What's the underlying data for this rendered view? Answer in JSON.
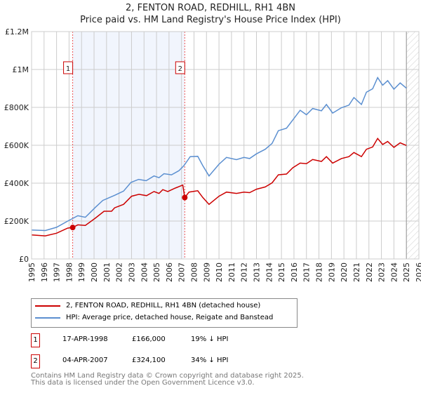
{
  "chart_data": {
    "type": "line",
    "title": "2, FENTON ROAD, REDHILL, RH1 4BN",
    "subtitle": "Price paid vs. HM Land Registry's House Price Index (HPI)",
    "xlim": [
      1995,
      2026
    ],
    "ylim": [
      0,
      1200000
    ],
    "x_ticks": [
      "1995",
      "1996",
      "1997",
      "1998",
      "1999",
      "2000",
      "2001",
      "2002",
      "2003",
      "2004",
      "2005",
      "2006",
      "2007",
      "2008",
      "2009",
      "2010",
      "2011",
      "2012",
      "2013",
      "2014",
      "2015",
      "2016",
      "2017",
      "2018",
      "2019",
      "2020",
      "2021",
      "2022",
      "2023",
      "2024",
      "2025",
      "2026"
    ],
    "y_ticks": [
      {
        "v": 0,
        "label": "£0"
      },
      {
        "v": 200000,
        "label": "£200K"
      },
      {
        "v": 400000,
        "label": "£400K"
      },
      {
        "v": 600000,
        "label": "£600K"
      },
      {
        "v": 800000,
        "label": "£800K"
      },
      {
        "v": 1000000,
        "label": "£1M"
      },
      {
        "v": 1200000,
        "label": "£1.2M"
      }
    ],
    "grid": true,
    "shaded_range": [
      1998.29,
      2007.26
    ],
    "forecast_hatch_from": 2025.0,
    "series": [
      {
        "name": "2, FENTON ROAD, REDHILL, RH1 4BN (detached house)",
        "color": "#cc0000",
        "x": [
          1995,
          1996.1,
          1997,
          1997.9,
          1998.29,
          1998.7,
          1999.3,
          2000.1,
          2000.8,
          2001.4,
          2001.65,
          2002.36,
          2003,
          2003.6,
          2004.2,
          2004.8,
          2005.2,
          2005.5,
          2005.9,
          2006.5,
          2007.1,
          2007.26,
          2007.6,
          2008.3,
          2008.7,
          2009.2,
          2010,
          2010.6,
          2011.4,
          2012,
          2012.45,
          2013,
          2013.7,
          2014.25,
          2014.75,
          2015.4,
          2015.9,
          2016.5,
          2017,
          2017.5,
          2018.2,
          2018.6,
          2019.1,
          2019.8,
          2020.4,
          2020.8,
          2021.4,
          2021.8,
          2022.3,
          2022.7,
          2023.1,
          2023.5,
          2024,
          2024.5,
          2025
        ],
        "y": [
          127000,
          122000,
          136000,
          163000,
          166000,
          180000,
          177000,
          215000,
          252000,
          252000,
          270000,
          288000,
          331000,
          341000,
          334000,
          356000,
          346000,
          366000,
          356000,
          374000,
          390000,
          324100,
          353000,
          360000,
          325000,
          288000,
          331000,
          353000,
          346000,
          353000,
          350000,
          368000,
          380000,
          402000,
          444000,
          448000,
          481000,
          506000,
          503000,
          525000,
          515000,
          540000,
          506000,
          530000,
          540000,
          562000,
          540000,
          579000,
          591000,
          636000,
          604000,
          620000,
          589000,
          613000,
          599000
        ]
      },
      {
        "name": "HPI: Average price, detached house, Reigate and Banstead",
        "color": "#5b8fd0",
        "x": [
          1995,
          1996.1,
          1997,
          1997.9,
          1998.7,
          1999.3,
          2000.1,
          2000.7,
          2001.65,
          2002.36,
          2002.96,
          2003.57,
          2004.17,
          2004.8,
          2005.2,
          2005.6,
          2006.2,
          2006.8,
          2007.2,
          2007.7,
          2008.3,
          2008.7,
          2009.2,
          2010,
          2010.6,
          2011.4,
          2012,
          2012.45,
          2013,
          2013.7,
          2014.25,
          2014.75,
          2015.4,
          2015.9,
          2016.5,
          2017,
          2017.5,
          2018.2,
          2018.6,
          2019.1,
          2019.8,
          2020.4,
          2020.8,
          2021.4,
          2021.8,
          2022.3,
          2022.7,
          2023.1,
          2023.5,
          2024,
          2024.5,
          2025
        ],
        "y": [
          153000,
          150000,
          167000,
          200000,
          228000,
          220000,
          272000,
          309000,
          336000,
          358000,
          404000,
          420000,
          413000,
          438000,
          429000,
          450000,
          444000,
          466000,
          493000,
          540000,
          542000,
          493000,
          438000,
          500000,
          536000,
          524000,
          536000,
          530000,
          555000,
          579000,
          610000,
          677000,
          690000,
          733000,
          785000,
          761000,
          794000,
          782000,
          815000,
          770000,
          798000,
          812000,
          852000,
          815000,
          880000,
          898000,
          957000,
          917000,
          941000,
          896000,
          929000,
          901000
        ]
      }
    ],
    "sales": [
      {
        "id": "1",
        "x": 1998.29,
        "price": 166000,
        "date": "17-APR-1998",
        "price_label": "£166,000",
        "delta": "19% ↓ HPI"
      },
      {
        "id": "2",
        "x": 2007.26,
        "price": 324100,
        "date": "04-APR-2007",
        "price_label": "£324,100",
        "delta": "34% ↓ HPI"
      }
    ]
  },
  "legend": {
    "red": "2, FENTON ROAD, REDHILL, RH1 4BN (detached house)",
    "blue": "HPI: Average price, detached house, Reigate and Banstead"
  },
  "footer": {
    "line1": "Contains HM Land Registry data © Crown copyright and database right 2025.",
    "line2": "This data is licensed under the Open Government Licence v3.0."
  }
}
